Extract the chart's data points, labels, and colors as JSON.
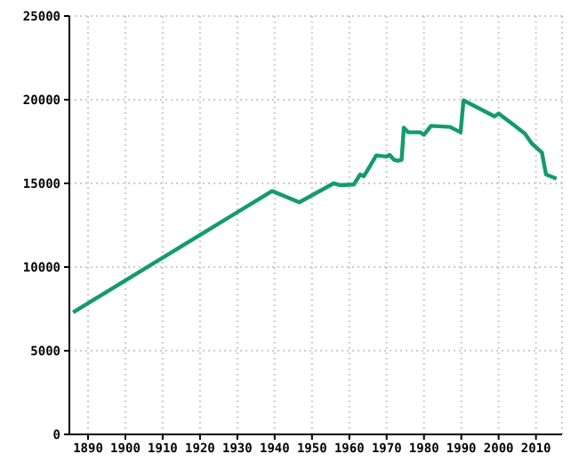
{
  "chart_data": {
    "type": "line",
    "x": [
      1886,
      1939.3,
      1946.6,
      1955.8,
      1957.7,
      1961.2,
      1962.9,
      1963.9,
      1965.6,
      1967.2,
      1969.9,
      1970.8,
      1971.9,
      1973,
      1974,
      1974.6,
      1975.8,
      1979,
      1980,
      1981.9,
      1985,
      1987,
      1989.8,
      1990.6,
      1998.9,
      2000,
      2001,
      2004.1,
      2007,
      2008.9,
      2011.6,
      2012.7,
      2015.5
    ],
    "series": [
      {
        "color": "#139b6c",
        "values": [
          7300,
          14540,
          13870,
          15000,
          14890,
          14930,
          15530,
          15430,
          16060,
          16670,
          16600,
          16700,
          16420,
          16350,
          16400,
          18330,
          18050,
          18050,
          17900,
          18440,
          18400,
          18370,
          18050,
          19960,
          19000,
          19180,
          19000,
          18480,
          17980,
          17380,
          16840,
          15530,
          15280
        ]
      }
    ],
    "xlim": [
      1885,
      2017
    ],
    "xticks": [
      1890,
      1900,
      1910,
      1920,
      1930,
      1940,
      1950,
      1960,
      1970,
      1980,
      1990,
      2000,
      2010
    ],
    "ylim": [
      0,
      25000
    ],
    "yticks": [
      0,
      5000,
      10000,
      15000,
      20000,
      25000
    ],
    "grid": true,
    "marker": "none",
    "line_style": "solid"
  }
}
